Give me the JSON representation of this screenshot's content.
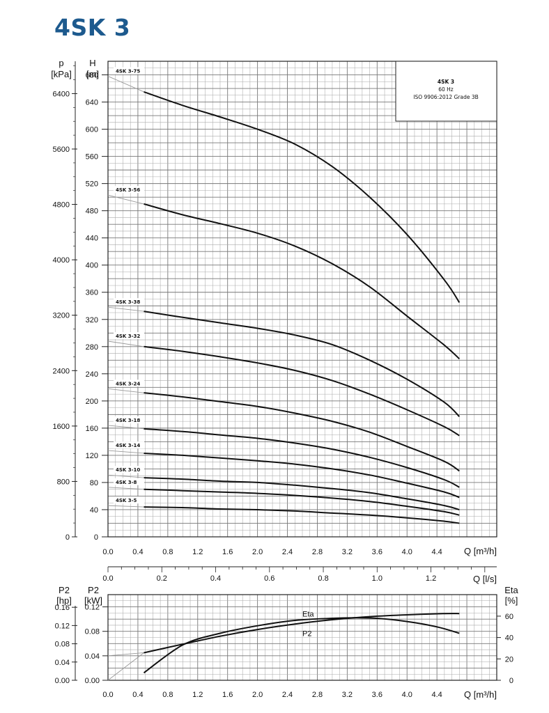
{
  "title": "4SK 3",
  "legend_box": {
    "line1": "4SK 3",
    "line2": "60 Hz",
    "line3": "ISO 9906:2012 Grade 3B"
  },
  "chart_data": [
    {
      "type": "line",
      "name": "head",
      "xlabel": "Q [m³/h]",
      "xlabel2": "Q [l/s]",
      "ylabel_left_unit": "p",
      "ylabel_left_sub": "[kPa]",
      "ylabel_right_unit": "H",
      "ylabel_right_sub": "[m]",
      "xlim": [
        0,
        5.2
      ],
      "ylim_H": [
        0,
        700
      ],
      "x_ticks": [
        "0.0",
        "0.4",
        "0.8",
        "1.2",
        "1.6",
        "2.0",
        "2.4",
        "2.8",
        "3.2",
        "3.6",
        "4.0",
        "4.4"
      ],
      "x2_ticks": [
        "0.0",
        "0.2",
        "0.4",
        "0.6",
        "0.8",
        "1.0",
        "1.2"
      ],
      "H_ticks": [
        "0",
        "40",
        "80",
        "120",
        "160",
        "200",
        "240",
        "280",
        "320",
        "360",
        "400",
        "440",
        "480",
        "520",
        "560",
        "600",
        "640",
        "680"
      ],
      "p_ticks": [
        "0",
        "800",
        "1600",
        "2400",
        "3200",
        "4000",
        "4800",
        "5600",
        "6400"
      ],
      "grid": true,
      "series": [
        {
          "name": "4SK 3-75",
          "x": [
            0,
            0.48,
            1.0,
            1.5,
            2.0,
            2.5,
            3.0,
            3.5,
            4.0,
            4.5,
            4.7
          ],
          "y": [
            678,
            655,
            635,
            618,
            600,
            578,
            545,
            500,
            445,
            378,
            345
          ]
        },
        {
          "name": "4SK 3-56",
          "x": [
            0,
            0.48,
            1.0,
            1.5,
            2.0,
            2.5,
            3.0,
            3.5,
            4.0,
            4.5,
            4.7
          ],
          "y": [
            503,
            490,
            474,
            461,
            447,
            428,
            402,
            368,
            325,
            282,
            262
          ]
        },
        {
          "name": "4SK 3-38",
          "x": [
            0,
            0.48,
            1.0,
            1.5,
            2.0,
            2.5,
            3.0,
            3.5,
            4.0,
            4.5,
            4.7
          ],
          "y": [
            338,
            332,
            323,
            315,
            307,
            297,
            283,
            260,
            232,
            198,
            177
          ]
        },
        {
          "name": "4SK 3-32",
          "x": [
            0,
            0.48,
            1.0,
            1.5,
            2.0,
            2.5,
            3.0,
            3.5,
            4.0,
            4.5,
            4.7
          ],
          "y": [
            288,
            280,
            273,
            265,
            256,
            245,
            230,
            210,
            187,
            162,
            149
          ]
        },
        {
          "name": "4SK 3-24",
          "x": [
            0,
            0.48,
            1.0,
            1.5,
            2.0,
            2.5,
            3.0,
            3.5,
            4.0,
            4.5,
            4.7
          ],
          "y": [
            218,
            212,
            206,
            199,
            192,
            182,
            170,
            154,
            133,
            111,
            97
          ]
        },
        {
          "name": "4SK 3-18",
          "x": [
            0,
            0.48,
            1.0,
            1.5,
            2.0,
            2.5,
            3.0,
            3.5,
            4.0,
            4.5,
            4.7
          ],
          "y": [
            164,
            159,
            155,
            150,
            145,
            138,
            129,
            117,
            102,
            84,
            73
          ]
        },
        {
          "name": "4SK 3-14",
          "x": [
            0,
            0.48,
            1.0,
            1.5,
            2.0,
            2.5,
            3.0,
            3.5,
            4.0,
            4.5,
            4.7
          ],
          "y": [
            127,
            123,
            120,
            116,
            112,
            107,
            100,
            91,
            79,
            66,
            58
          ]
        },
        {
          "name": "4SK 3-10",
          "x": [
            0,
            0.48,
            1.0,
            1.5,
            2.0,
            2.5,
            3.0,
            3.5,
            4.0,
            4.5,
            4.7
          ],
          "y": [
            91,
            87,
            85,
            82,
            80,
            76,
            71,
            65,
            56,
            46,
            40
          ]
        },
        {
          "name": "4SK 3-8",
          "x": [
            0,
            0.48,
            1.0,
            1.5,
            2.0,
            2.5,
            3.0,
            3.5,
            4.0,
            4.5,
            4.7
          ],
          "y": [
            73,
            70,
            68,
            66,
            64,
            61,
            57,
            52,
            45,
            37,
            32
          ]
        },
        {
          "name": "4SK 3-5",
          "x": [
            0,
            0.48,
            1.0,
            1.5,
            2.0,
            2.5,
            3.0,
            3.5,
            4.0,
            4.5,
            4.7
          ],
          "y": [
            46,
            44,
            43,
            41,
            40,
            38,
            35,
            32,
            28,
            23,
            20
          ]
        }
      ]
    },
    {
      "type": "line",
      "name": "power-efficiency",
      "xlabel": "Q [m³/h]",
      "ylabel_left_unit": "P2",
      "ylabel_left_sub": "[hp]",
      "ylabel_mid_unit": "P2",
      "ylabel_mid_sub": "[kW]",
      "ylabel_right_unit": "Eta",
      "ylabel_right_sub": "[%]",
      "xlim": [
        0,
        5.2
      ],
      "ylim_kW": [
        0,
        0.14
      ],
      "x_ticks": [
        "0.0",
        "0.4",
        "0.8",
        "1.2",
        "1.6",
        "2.0",
        "2.4",
        "2.8",
        "3.2",
        "3.6",
        "4.0",
        "4.4"
      ],
      "kW_ticks": [
        "0.00",
        "0.04",
        "0.08",
        "0.12"
      ],
      "hp_ticks": [
        "0.00",
        "0.04",
        "0.08",
        "0.12",
        "0.16"
      ],
      "eta_ticks": [
        "0",
        "20",
        "40",
        "60"
      ],
      "grid": true,
      "series": [
        {
          "name": "Eta",
          "x": [
            0.48,
            1.0,
            1.5,
            2.0,
            2.5,
            3.0,
            3.3,
            3.6,
            4.0,
            4.4,
            4.7
          ],
          "y": [
            7,
            33,
            44,
            51,
            56,
            58,
            58.5,
            58,
            55,
            50,
            44
          ]
        },
        {
          "name": "P2",
          "x": [
            0,
            0.48,
            1.0,
            1.5,
            2.0,
            2.5,
            3.0,
            3.5,
            4.0,
            4.5,
            4.7
          ],
          "y": [
            0.04,
            0.045,
            0.059,
            0.072,
            0.083,
            0.092,
            0.099,
            0.104,
            0.107,
            0.109,
            0.109
          ]
        }
      ]
    }
  ]
}
